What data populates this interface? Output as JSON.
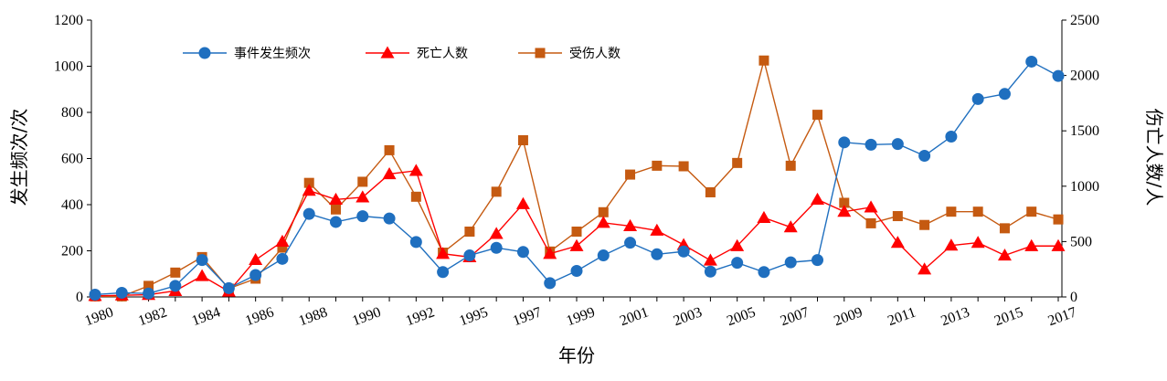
{
  "chart_data": {
    "type": "line",
    "title": "",
    "xlabel": "年份",
    "ylabel_left": "发生频次/次",
    "ylabel_right": "伤亡人数/人",
    "ylim_left": [
      0,
      1200
    ],
    "yticks_left": [
      0,
      200,
      400,
      600,
      800,
      1000,
      1200
    ],
    "ylim_right": [
      0,
      2500
    ],
    "yticks_right": [
      0,
      500,
      1000,
      1500,
      2000,
      2500
    ],
    "grid": false,
    "legend_position": "top-left",
    "years": [
      1980,
      1981,
      1982,
      1983,
      1984,
      1985,
      1986,
      1987,
      1988,
      1989,
      1990,
      1991,
      1992,
      1994,
      1995,
      1996,
      1997,
      1998,
      1999,
      2000,
      2001,
      2002,
      2003,
      2004,
      2005,
      2006,
      2007,
      2008,
      2009,
      2010,
      2011,
      2012,
      2013,
      2014,
      2015,
      2016,
      2017
    ],
    "x_tick_labels": [
      "1980",
      "1982",
      "1984",
      "1986",
      "1988",
      "1990",
      "1992",
      "1995",
      "1997",
      "1999",
      "2001",
      "2003",
      "2005",
      "2007",
      "2009",
      "2011",
      "2013",
      "2015",
      "2017"
    ],
    "series": [
      {
        "name": "事件发生频次",
        "axis": "left",
        "color": "#1f6fbf",
        "marker": "circle",
        "values": [
          10,
          18,
          15,
          48,
          160,
          38,
          95,
          165,
          360,
          325,
          350,
          340,
          238,
          108,
          180,
          213,
          195,
          60,
          113,
          180,
          235,
          185,
          197,
          110,
          148,
          108,
          150,
          160,
          670,
          660,
          663,
          612,
          695,
          858,
          880,
          1020,
          958
        ]
      },
      {
        "name": "死亡人数",
        "axis": "right",
        "color": "#ff0000",
        "marker": "triangle",
        "values": [
          10,
          15,
          20,
          55,
          190,
          50,
          335,
          500,
          960,
          880,
          900,
          1110,
          1140,
          390,
          360,
          570,
          840,
          390,
          460,
          670,
          640,
          600,
          470,
          330,
          460,
          715,
          630,
          880,
          770,
          810,
          490,
          250,
          465,
          490,
          375,
          460,
          460
        ]
      },
      {
        "name": "受伤人数",
        "axis": "right",
        "color": "#c55a11",
        "marker": "square",
        "values": [
          5,
          5,
          100,
          220,
          360,
          75,
          165,
          445,
          1030,
          790,
          1040,
          1325,
          905,
          400,
          590,
          950,
          1415,
          410,
          590,
          765,
          1105,
          1185,
          1180,
          945,
          1210,
          2135,
          1185,
          1645,
          850,
          665,
          730,
          650,
          770,
          770,
          620,
          770,
          700
        ]
      }
    ]
  }
}
